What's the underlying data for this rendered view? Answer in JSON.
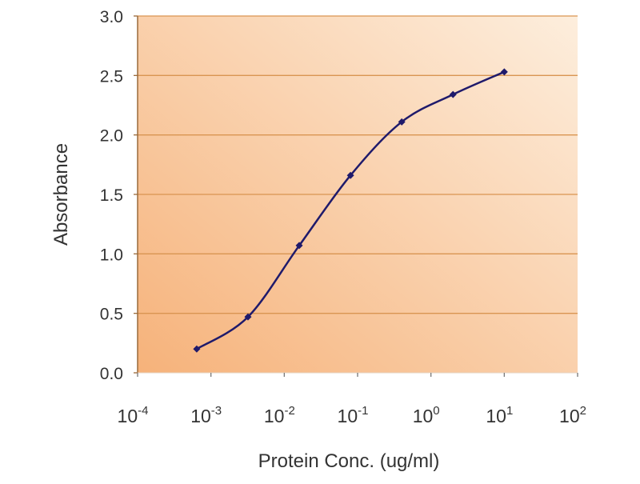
{
  "chart_data": {
    "type": "line",
    "title": "",
    "xlabel": "Protein Conc. (ug/ml)",
    "ylabel": "Absorbance",
    "xscale": "log",
    "xlim": [
      0.0001,
      100
    ],
    "ylim": [
      0,
      3.0
    ],
    "x_ticks": [
      {
        "base": "10",
        "exp": "-4",
        "value": 0.0001
      },
      {
        "base": "10",
        "exp": "-3",
        "value": 0.001
      },
      {
        "base": "10",
        "exp": "-2",
        "value": 0.01
      },
      {
        "base": "10",
        "exp": "-1",
        "value": 0.1
      },
      {
        "base": "10",
        "exp": "0",
        "value": 1
      },
      {
        "base": "10",
        "exp": "1",
        "value": 10
      },
      {
        "base": "10",
        "exp": "2",
        "value": 100
      }
    ],
    "y_ticks": [
      "0.0",
      "0.5",
      "1.0",
      "1.5",
      "2.0",
      "2.5",
      "3.0"
    ],
    "grid": "horizontal",
    "series": [
      {
        "name": "Absorbance",
        "color": "#1f1a6b",
        "x": [
          0.00064,
          0.0032,
          0.016,
          0.08,
          0.4,
          2,
          10
        ],
        "y": [
          0.2,
          0.47,
          1.07,
          1.66,
          2.11,
          2.34,
          2.53
        ]
      }
    ],
    "colors": {
      "bg_dark": "#f6b27a",
      "bg_light": "#fdeedd",
      "grid": "#d99552",
      "axis": "#9a6a3a"
    }
  }
}
